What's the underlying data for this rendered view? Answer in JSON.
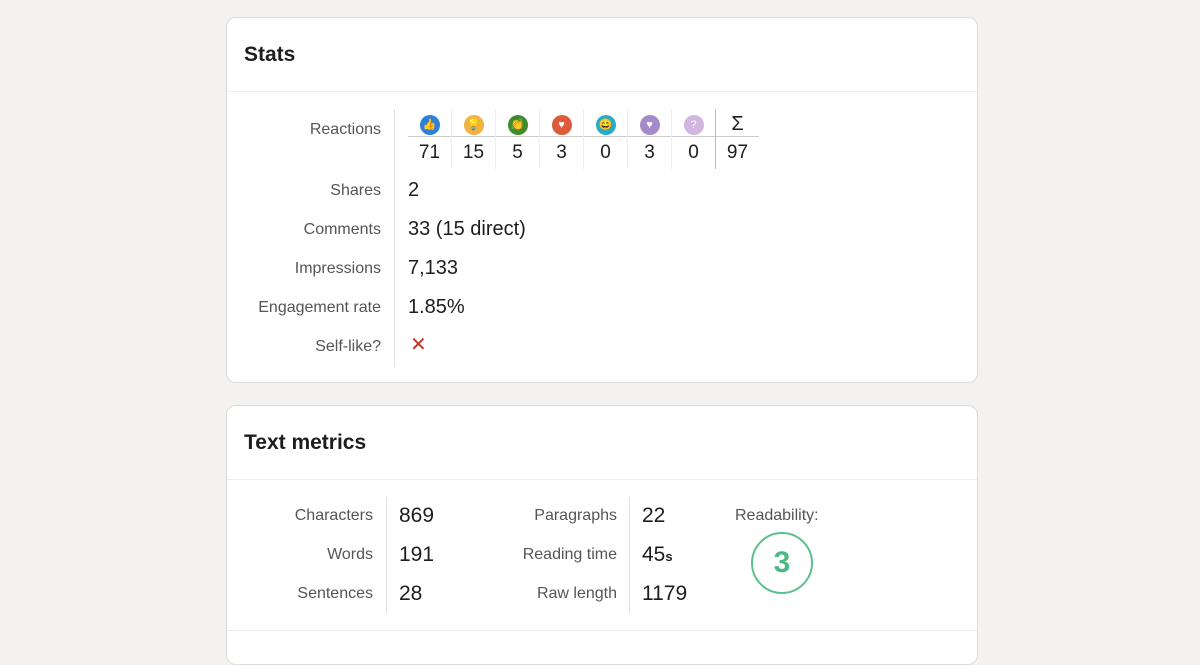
{
  "stats": {
    "title": "Stats",
    "reactions_label": "Reactions",
    "reactions": [
      {
        "icon": "like-icon",
        "color": "#2f7fd8",
        "glyph": "👍",
        "count": "71"
      },
      {
        "icon": "insightful-icon",
        "color": "#f0b343",
        "glyph": "💡",
        "count": "15"
      },
      {
        "icon": "celebrate-icon",
        "color": "#3f8a2c",
        "glyph": "👏",
        "count": "5"
      },
      {
        "icon": "love-icon",
        "color": "#dd5b3c",
        "glyph": "♥",
        "count": "3"
      },
      {
        "icon": "funny-icon",
        "color": "#2aabc4",
        "glyph": "😄",
        "count": "0"
      },
      {
        "icon": "support-icon",
        "color": "#a48ac8",
        "glyph": "♥",
        "count": "3"
      },
      {
        "icon": "curious-icon",
        "color": "#d2b5e0",
        "glyph": "?",
        "count": "0"
      }
    ],
    "sum_symbol": "Σ",
    "total": "97",
    "rows": [
      {
        "label": "Shares",
        "value": "2"
      },
      {
        "label": "Comments",
        "value": "33 (15 direct)"
      },
      {
        "label": "Impressions",
        "value": "7,133"
      },
      {
        "label": "Engagement rate",
        "value": "1.85%"
      }
    ],
    "self_like_label": "Self-like?",
    "self_like_value": "✕"
  },
  "text_metrics": {
    "title": "Text metrics",
    "left": [
      {
        "label": "Characters",
        "value": "869"
      },
      {
        "label": "Words",
        "value": "191"
      },
      {
        "label": "Sentences",
        "value": "28"
      }
    ],
    "right": [
      {
        "label": "Paragraphs",
        "value": "22"
      },
      {
        "label": "Reading time",
        "value": "45",
        "unit": "s"
      },
      {
        "label": "Raw length",
        "value": "1179"
      }
    ],
    "readability_label": "Readability:",
    "readability_score": "3",
    "readability_color": "#5cc08e"
  }
}
